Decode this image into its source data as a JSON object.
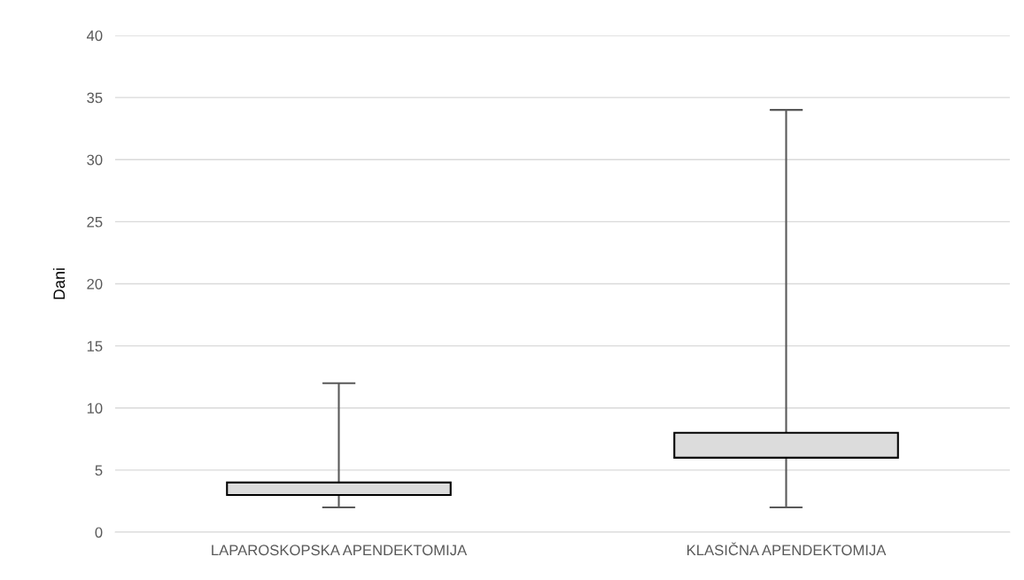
{
  "chart_data": {
    "type": "candlestick",
    "ylabel": "Dani",
    "categories": [
      "LAPAROSKOPSKA APENDEKTOMIJA",
      "KLASIČNA APENDEKTOMIJA"
    ],
    "ohlc": [
      [
        3,
        12,
        2,
        4
      ],
      [
        6,
        34,
        2,
        8
      ]
    ],
    "color": "#dcdcdc",
    "ylim": [
      0,
      40
    ],
    "yticks": [
      0,
      5,
      10,
      15,
      20,
      25,
      30,
      35,
      40
    ],
    "grid": "y",
    "legend": false
  }
}
